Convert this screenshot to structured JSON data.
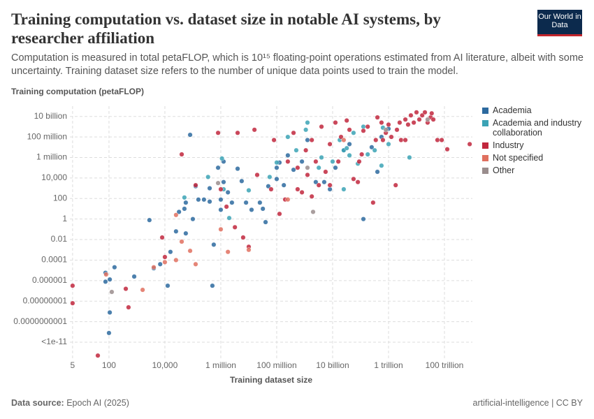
{
  "chart_data": {
    "type": "scatter",
    "title": "Training computation vs. dataset size in notable AI systems, by researcher affiliation",
    "subtitle": "Computation is measured in total petaFLOP, which is 10¹⁵ floating-point operations estimated from AI literature, albeit with some uncertainty. Training dataset size refers to the number of unique data points used to train the model.",
    "y_label": "Training computation (petaFLOP)",
    "x_label": "Training dataset size",
    "source_label": "Data source:",
    "source": "Epoch AI (2025)",
    "footer_right": "artificial-intelligence | CC BY",
    "logo": "Our World in Data",
    "xscale": "log",
    "yscale": "log",
    "grid": true,
    "legend": "right",
    "xlim": [
      4,
      1000000000000000.0
    ],
    "ylim": [
      2e-14,
      100000000000.0
    ],
    "xticks": [
      5,
      100,
      {
        "value": 10000,
        "label": "10,000"
      },
      {
        "value": 1000000.0,
        "label": "1 million"
      },
      {
        "value": 100000000.0,
        "label": "100 million"
      },
      {
        "value": 10000000000.0,
        "label": "10 billion"
      },
      {
        "value": 1000000000000.0,
        "label": "1 trillion"
      },
      {
        "value": 100000000000000.0,
        "label": "100 trillion"
      }
    ],
    "yticks": [
      {
        "value": 10000000000.0,
        "label": "10 billion"
      },
      {
        "value": 100000000.0,
        "label": "100 million"
      },
      {
        "value": 1000000.0,
        "label": "1 million"
      },
      {
        "value": 10000,
        "label": "10,000"
      },
      100,
      1,
      0.01,
      0.0001,
      1e-06,
      {
        "value": 1e-08,
        "label": "0.00000001"
      },
      {
        "value": 1e-10,
        "label": "0.0000000001"
      },
      {
        "value": 1e-12,
        "label": "<1e-11"
      }
    ],
    "series": [
      {
        "name": "Academia",
        "color": "#2d6a9f",
        "x": [
          75,
          75,
          107,
          158,
          107,
          100,
          2800,
          4000,
          6800,
          12600,
          15800,
          25000,
          32000,
          50000,
          56000,
          80000,
          56000,
          100000.0,
          126000.0,
          158000.0,
          250000.0,
          400000.0,
          500000.0,
          560000.0,
          400000.0,
          800000.0,
          1000000.0,
          1000000.0,
          1260000.0,
          1260000.0,
          1800000.0,
          2500000.0,
          4000000.0,
          5600000.0,
          8000000.0,
          12600000.0,
          25000000.0,
          32000000.0,
          40000000.0,
          50000000.0,
          100000000.0,
          100000000.0,
          126000000.0,
          180000000.0,
          250000000.0,
          400000000.0,
          800000000.0,
          1260000000.0,
          2500000000.0,
          5000000000.0,
          8000000000.0,
          12600000000.0,
          25000000000.0,
          40000000000.0,
          126000000000.0,
          250000000000.0,
          560000000000.0,
          1000000000000.0,
          400000000000.0,
          800
        ],
        "values": [
          5.8e-06,
          7.9e-07,
          1.3e-06,
          2e-05,
          7.9e-10,
          7.9e-12,
          0.79,
          1.6e-05,
          4e-05,
          3.2e-07,
          0.00063,
          0.063,
          5,
          10,
          40,
          160000000.0,
          0.04,
          1,
          1580,
          79,
          79,
          50,
          3.2e-07,
          0.0032,
          1000,
          100000.0,
          79,
          8,
          400000.0,
          4000,
          400,
          40,
          80000.0,
          5000,
          40,
          8,
          40,
          10,
          0.5,
          1580,
          100000.0,
          8000,
          320000.0,
          2000,
          1600000.0,
          63000.0,
          400000.0,
          50000000.0,
          4000,
          4000,
          800,
          100000.0,
          5000000.0,
          20000000.0,
          1,
          10000000.0,
          100000000.0,
          630000000.0,
          40000.0,
          2.5e-06
        ]
      },
      {
        "name": "Academia and industry collaboration",
        "color": "#3ba3b5",
        "x": [
          50000.0,
          350000.0,
          1100000.0,
          1260000.0,
          2000000.0,
          10000000.0,
          56000000.0,
          100000000.0,
          250000000.0,
          500000000.0,
          1100000000.0,
          1260000000.0,
          3200000000.0,
          4000000000.0,
          10000000000.0,
          18000000000.0,
          25000000000.0,
          32000000000.0,
          40000000000.0,
          56000000000.0,
          80000000000.0,
          126000000000.0,
          180000000000.0,
          320000000000.0,
          560000000000.0,
          630000000000.0,
          1000000000000.0,
          5600000000000.0,
          25000000000.0
        ],
        "values": [
          126,
          12600.0,
          800000.0,
          800,
          1.26,
          630,
          12600.0,
          320000.0,
          100000000.0,
          5000000.0,
          500000000.0,
          2500000000.0,
          100000.0,
          1000000.0,
          400000.0,
          50000000.0,
          5000000.0,
          8000000.0,
          1600000.0,
          250000000.0,
          250000.0,
          1000000000.0,
          2000000.0,
          5000000.0,
          160000.0,
          800000000.0,
          20000000.0,
          1000000.0,
          800
        ]
      },
      {
        "name": "Industry",
        "color": "#c1273d",
        "x": [
          5,
          5,
          40,
          400,
          500,
          8000,
          10000.0,
          40000.0,
          126000.0,
          800000.0,
          1000000.0,
          1600000.0,
          3200000.0,
          4000000.0,
          6300000.0,
          10000000.0,
          16000000.0,
          20000000.0,
          63000000.0,
          80000000.0,
          126000000.0,
          200000000.0,
          250000000.0,
          400000000.0,
          560000000.0,
          800000000.0,
          1100000000.0,
          1260000000.0,
          1800000000.0,
          2500000000.0,
          3200000000.0,
          4000000000.0,
          5600000000.0,
          8000000000.0,
          12600000000.0,
          16000000000.0,
          20000000000.0,
          32000000000.0,
          40000000000.0,
          56000000000.0,
          80000000000.0,
          89000000000.0,
          110000000000.0,
          126000000000.0,
          180000000000.0,
          280000000000.0,
          350000000000.0,
          400000000000.0,
          560000000000.0,
          630000000000.0,
          800000000000.0,
          1000000000000.0,
          1260000000000.0,
          1800000000000.0,
          2000000000000.0,
          2500000000000.0,
          2800000000000.0,
          4000000000000.0,
          5000000000000.0,
          6300000000000.0,
          8000000000000.0,
          10000000000000.0,
          12600000000000.0,
          16000000000000.0,
          20000000000000.0,
          25000000000000.0,
          32000000000000.0,
          35000000000000.0,
          40000000000000.0,
          56000000000000.0,
          80000000000000.0,
          126000000000000.0,
          800000000000000.0,
          560000000.0,
          1800000000.0,
          8000000000.0,
          4000000000000.0
        ],
        "values": [
          3.2e-07,
          6.3e-09,
          5e-14,
          1.6e-07,
          2.5e-09,
          0.016,
          0.0002,
          2000000.0,
          2000,
          250000000.0,
          800,
          16,
          0.16,
          250000000.0,
          0.016,
          0.002,
          500000000.0,
          20000.0,
          800,
          50000000.0,
          3.2,
          80,
          400000.0,
          250000000.0,
          100000.0,
          400,
          5000000.0,
          20000.0,
          50000000.0,
          400000.0,
          2000,
          1000000000.0,
          40000.0,
          20000000.0,
          2500000000.0,
          400000.0,
          100000000.0,
          4000000000.0,
          500000000.0,
          8000,
          4000,
          400000.0,
          2000000.0,
          400000000.0,
          1000000000.0,
          40,
          50000000.0,
          8000000000.0,
          2500000000.0,
          50000000.0,
          250000000.0,
          1600000000.0,
          100000000.0,
          2000,
          500000000.0,
          2500000000.0,
          50000000.0,
          5000000000.0,
          1600000000.0,
          12600000000.0,
          2500000000.0,
          25000000000.0,
          5000000000.0,
          12600000000.0,
          25000000000.0,
          2500000000.0,
          8000000000.0,
          20000000000.0,
          5000000000.0,
          50000000.0,
          50000000.0,
          6300000.0,
          20000000.0,
          800,
          160,
          2000,
          50000000.0
        ]
      },
      {
        "name": "Not specified",
        "color": "#e0705f",
        "x": [
          79,
          4000,
          10000.0,
          25000.0,
          25000.0,
          40000.0,
          80000.0,
          126000.0,
          1000000.0,
          1800000.0,
          10000000.0,
          1600,
          250000000.0,
          25000000000.0
        ],
        "values": [
          4e-06,
          2e-05,
          6.3e-05,
          2.5,
          0.0001,
          0.0063,
          0.0008,
          4e-05,
          0.1,
          0.00063,
          0.001,
          1.26e-07,
          80,
          50000000.0
        ]
      },
      {
        "name": "Other",
        "color": "#9a8d8d",
        "x": [
          126,
          800000.0,
          2000000000.0,
          800000000000.0,
          25000000000000.0,
          1260000000.0
        ],
        "values": [
          7.9e-08,
          3200,
          5,
          500000000.0,
          5000000000.0,
          100000.0
        ]
      }
    ]
  }
}
